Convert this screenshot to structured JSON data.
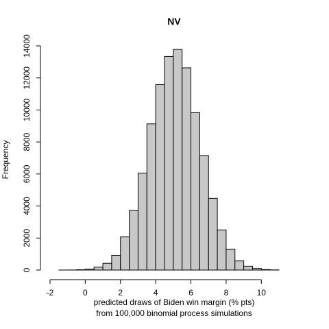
{
  "chart_data": {
    "type": "bar",
    "title": "NV",
    "xlabel": "predicted draws of Biden win margin (% pts)",
    "xlabel_line2": "from 100,000 binomial process simulations",
    "ylabel": "Frequency",
    "bin_edges": [
      -1.5,
      -1,
      -0.5,
      0,
      0.5,
      1,
      1.5,
      2,
      2.5,
      3,
      3.5,
      4,
      4.5,
      5,
      5.5,
      6,
      6.5,
      7,
      7.5,
      8,
      8.5,
      9,
      9.5,
      10,
      10.5,
      11
    ],
    "values": [
      2,
      5,
      20,
      60,
      180,
      420,
      920,
      2070,
      3720,
      6060,
      9130,
      11580,
      13340,
      13780,
      12630,
      9830,
      7150,
      4480,
      2500,
      1310,
      570,
      240,
      100,
      30,
      10
    ],
    "xlim": [
      -2,
      11
    ],
    "ylim": [
      0,
      14000
    ],
    "xticks": [
      -2,
      0,
      2,
      4,
      6,
      8,
      10
    ],
    "yticks": [
      0,
      2000,
      4000,
      6000,
      8000,
      10000,
      12000,
      14000
    ],
    "bar_color": "#c8c8c8",
    "grid": false,
    "legend": "none"
  }
}
